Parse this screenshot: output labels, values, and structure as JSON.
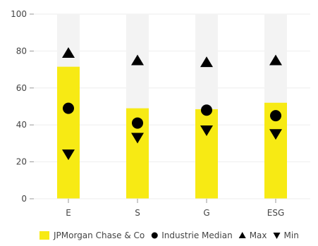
{
  "chart_data": {
    "type": "bar",
    "categories": [
      "E",
      "S",
      "G",
      "ESG"
    ],
    "ylim": [
      0,
      100
    ],
    "yticks": [
      0,
      20,
      40,
      60,
      80,
      100
    ],
    "background_range_max": 100,
    "colors": {
      "bar": "#f7ea14",
      "background_band": "#f3f3f3",
      "markers": "#000000",
      "grid": "#eeeeee",
      "axis": "#9a9a9a"
    },
    "series": [
      {
        "name": "JPMorgan Chase & Co",
        "marker": "bar",
        "values": [
          71.5,
          49,
          48.5,
          52
        ]
      },
      {
        "name": "Industrie Median",
        "marker": "circle",
        "values": [
          49,
          41,
          48,
          45
        ]
      },
      {
        "name": "Max",
        "marker": "triangle-up",
        "values": [
          79,
          75,
          74,
          75
        ]
      },
      {
        "name": "Min",
        "marker": "triangle-down",
        "values": [
          24,
          33,
          37,
          35
        ]
      }
    ],
    "legend": {
      "position": "bottom"
    },
    "grid": true
  }
}
